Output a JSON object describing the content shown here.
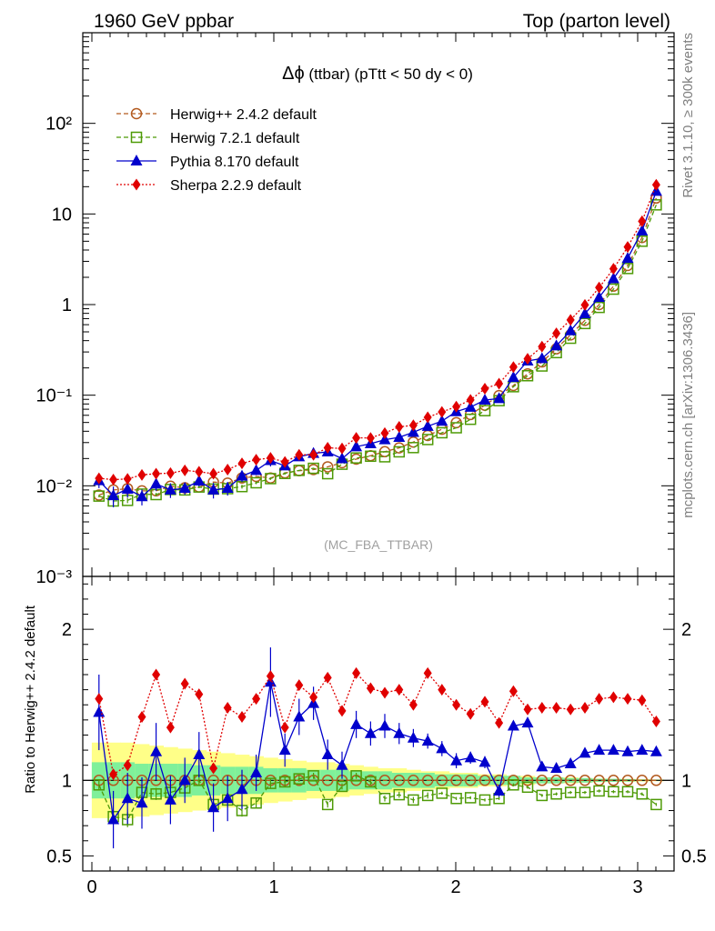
{
  "header": {
    "left": "1960 GeV ppbar",
    "right": "Top (parton level)"
  },
  "side": {
    "rivet": "Rivet 3.1.10, ≥ 300k events",
    "mcplots": "mcplots.cern.ch [arXiv:1306.3436]"
  },
  "plot": {
    "title_prefix": "Δϕ",
    "title_rest": " (ttbar) (pTtt < 50 dy < 0)",
    "watermark": "(MC_FBA_TTBAR)",
    "ratio_ylabel": "Ratio to Herwig++ 2.4.2 default"
  },
  "colors": {
    "herwigpp": "#b35a1f",
    "herwig7": "#4e9a06",
    "pythia": "#0000cc",
    "sherpa": "#e00000",
    "band_inner": "#7ff09a",
    "band_outer": "#ffff88"
  },
  "chart_data": {
    "type": "line",
    "x": [
      0.039,
      0.118,
      0.196,
      0.275,
      0.353,
      0.432,
      0.511,
      0.589,
      0.668,
      0.746,
      0.825,
      0.903,
      0.982,
      1.061,
      1.139,
      1.218,
      1.296,
      1.375,
      1.453,
      1.532,
      1.61,
      1.689,
      1.767,
      1.846,
      1.924,
      2.003,
      2.081,
      2.16,
      2.238,
      2.317,
      2.395,
      2.474,
      2.553,
      2.631,
      2.71,
      2.788,
      2.867,
      2.945,
      3.024,
      3.102
    ],
    "xlim": [
      -0.05,
      3.2
    ],
    "xticks": [
      "0",
      "1",
      "2",
      "3"
    ],
    "main": {
      "scale": "log",
      "ylim": [
        0.001,
        1000
      ],
      "yticks": [
        "10⁻³",
        "10⁻²",
        "10⁻¹",
        "1",
        "10",
        "10²"
      ]
    },
    "ratio": {
      "ylim": [
        0.4,
        2.35
      ],
      "yticks": [
        "0.5",
        "1",
        "2"
      ]
    },
    "series": [
      {
        "name": "Herwig++ 2.4.2 default",
        "key": "herwigpp",
        "marker": "open-circle",
        "line": "dashed",
        "values": [
          0.0079,
          0.009,
          0.0093,
          0.0088,
          0.0088,
          0.0099,
          0.0095,
          0.0097,
          0.011,
          0.0107,
          0.0122,
          0.0127,
          0.0122,
          0.0139,
          0.0147,
          0.0151,
          0.0162,
          0.018,
          0.0197,
          0.0215,
          0.0238,
          0.0262,
          0.0304,
          0.0359,
          0.0421,
          0.0497,
          0.0612,
          0.0775,
          0.0989,
          0.128,
          0.172,
          0.233,
          0.325,
          0.463,
          0.67,
          1.0,
          1.6,
          2.7,
          5.5,
          15.0
        ],
        "ratio": [
          1.0,
          1.0,
          1.0,
          1.0,
          1.0,
          1.0,
          1.0,
          1.0,
          1.0,
          1.0,
          1.0,
          1.0,
          1.0,
          1.0,
          1.0,
          1.0,
          1.0,
          1.0,
          1.0,
          1.0,
          1.0,
          1.0,
          1.0,
          1.0,
          1.0,
          1.0,
          1.0,
          1.0,
          1.0,
          1.0,
          1.0,
          1.0,
          1.0,
          1.0,
          1.0,
          1.0,
          1.0,
          1.0,
          1.0,
          1.0
        ],
        "band_inner": [
          0.12,
          0.12,
          0.12,
          0.11,
          0.11,
          0.11,
          0.11,
          0.1,
          0.1,
          0.09,
          0.09,
          0.09,
          0.08,
          0.08,
          0.08,
          0.07,
          0.07,
          0.07,
          0.06,
          0.06,
          0.06,
          0.05,
          0.05,
          0.05,
          0.04,
          0.04,
          0.04,
          0.03,
          0.03,
          0.03,
          0.02,
          0.02,
          0.02,
          0.015,
          0.015,
          0.01,
          0.01,
          0.008,
          0.005,
          0.004
        ],
        "band_outer": [
          0.25,
          0.25,
          0.25,
          0.24,
          0.23,
          0.22,
          0.21,
          0.2,
          0.19,
          0.18,
          0.17,
          0.16,
          0.15,
          0.14,
          0.13,
          0.12,
          0.12,
          0.11,
          0.1,
          0.09,
          0.08,
          0.08,
          0.07,
          0.06,
          0.06,
          0.05,
          0.05,
          0.04,
          0.04,
          0.03,
          0.03,
          0.02,
          0.02,
          0.02,
          0.015,
          0.012,
          0.01,
          0.01,
          0.008,
          0.006
        ]
      },
      {
        "name": "Herwig 7.2.1 default",
        "key": "herwig7",
        "marker": "open-square",
        "line": "dashed",
        "values": [
          0.0077,
          0.0068,
          0.0069,
          0.0081,
          0.008,
          0.0091,
          0.009,
          0.0097,
          0.0092,
          0.0093,
          0.0098,
          0.0108,
          0.012,
          0.0137,
          0.0148,
          0.0156,
          0.0136,
          0.0173,
          0.0203,
          0.0212,
          0.0209,
          0.0237,
          0.0264,
          0.0324,
          0.0385,
          0.0437,
          0.0542,
          0.0675,
          0.087,
          0.124,
          0.164,
          0.21,
          0.295,
          0.425,
          0.618,
          0.93,
          1.48,
          2.5,
          5.0,
          12.6
        ],
        "ratio": [
          0.97,
          0.76,
          0.74,
          0.92,
          0.91,
          0.92,
          0.95,
          1.0,
          0.84,
          0.87,
          0.8,
          0.85,
          0.98,
          0.99,
          1.01,
          1.03,
          0.84,
          0.96,
          1.03,
          0.99,
          0.88,
          0.905,
          0.87,
          0.9,
          0.915,
          0.88,
          0.885,
          0.87,
          0.88,
          0.97,
          0.955,
          0.9,
          0.91,
          0.92,
          0.92,
          0.93,
          0.925,
          0.925,
          0.91,
          0.84
        ],
        "errors": [
          0.03,
          0.04,
          0.05,
          0.04,
          0.04,
          0.04,
          0.03,
          0.03,
          0.03,
          0.04,
          0.04,
          0.03,
          0.03,
          0.03,
          0.02,
          0.02,
          0.02,
          0.02,
          0.02,
          0.02,
          0.02,
          0.02,
          0.02,
          0.02,
          0.01,
          0.01,
          0.01,
          0.01,
          0.01,
          0.01,
          0.01,
          0.01,
          0.01,
          0.01,
          0.01,
          0.01,
          0.01,
          0.01,
          0.01,
          0.01
        ]
      },
      {
        "name": "Pythia 8.170 default",
        "key": "pythia",
        "marker": "filled-triangle",
        "line": "solid",
        "values": [
          0.0114,
          0.0078,
          0.0092,
          0.0076,
          0.0105,
          0.009,
          0.0094,
          0.0113,
          0.009,
          0.0094,
          0.0128,
          0.0148,
          0.019,
          0.0166,
          0.0209,
          0.0228,
          0.0237,
          0.0199,
          0.027,
          0.0292,
          0.0323,
          0.0343,
          0.0389,
          0.0454,
          0.0517,
          0.0659,
          0.0738,
          0.0885,
          0.0917,
          0.157,
          0.239,
          0.254,
          0.351,
          0.514,
          0.792,
          1.2,
          1.93,
          3.24,
          6.5,
          17.8
        ],
        "ratio": [
          1.45,
          0.74,
          0.88,
          0.85,
          1.19,
          0.87,
          1.0,
          1.17,
          0.82,
          0.88,
          0.94,
          1.05,
          1.65,
          1.2,
          1.42,
          1.51,
          1.17,
          1.1,
          1.37,
          1.31,
          1.36,
          1.31,
          1.28,
          1.26,
          1.21,
          1.13,
          1.15,
          1.12,
          0.93,
          1.36,
          1.38,
          1.09,
          1.08,
          1.11,
          1.18,
          1.2,
          1.2,
          1.19,
          1.2,
          1.19
        ],
        "errors": [
          0.25,
          0.19,
          0.17,
          0.17,
          0.19,
          0.16,
          0.15,
          0.15,
          0.16,
          0.15,
          0.13,
          0.12,
          0.23,
          0.11,
          0.12,
          0.11,
          0.1,
          0.09,
          0.09,
          0.08,
          0.08,
          0.07,
          0.06,
          0.05,
          0.05,
          0.05,
          0.04,
          0.04,
          0.04,
          0.03,
          0.03,
          0.02,
          0.02,
          0.02,
          0.02,
          0.01,
          0.01,
          0.01,
          0.01,
          0.01
        ]
      },
      {
        "name": "Sherpa 2.2.9 default",
        "key": "sherpa",
        "marker": "filled-diamond",
        "line": "dotted",
        "values": [
          0.0121,
          0.0117,
          0.0119,
          0.0132,
          0.0136,
          0.0138,
          0.0148,
          0.0143,
          0.0136,
          0.0151,
          0.0177,
          0.0194,
          0.0203,
          0.0183,
          0.022,
          0.022,
          0.0263,
          0.0258,
          0.0338,
          0.0337,
          0.0382,
          0.0447,
          0.0465,
          0.057,
          0.0653,
          0.0747,
          0.0887,
          0.118,
          0.134,
          0.204,
          0.252,
          0.344,
          0.481,
          0.678,
          0.992,
          1.54,
          2.48,
          4.32,
          8.3,
          21.0
        ],
        "ratio": [
          1.54,
          1.04,
          1.1,
          1.42,
          1.7,
          1.35,
          1.64,
          1.57,
          1.08,
          1.48,
          1.42,
          1.54,
          1.69,
          1.35,
          1.63,
          1.55,
          1.68,
          1.46,
          1.71,
          1.61,
          1.58,
          1.6,
          1.5,
          1.71,
          1.6,
          1.5,
          1.44,
          1.52,
          1.38,
          1.59,
          1.47,
          1.48,
          1.48,
          1.47,
          1.48,
          1.54,
          1.55,
          1.54,
          1.53,
          1.39
        ],
        "errors": [
          0.02,
          0.02,
          0.02,
          0.02,
          0.02,
          0.02,
          0.02,
          0.02,
          0.02,
          0.02,
          0.02,
          0.02,
          0.02,
          0.02,
          0.02,
          0.02,
          0.02,
          0.02,
          0.02,
          0.01,
          0.01,
          0.01,
          0.01,
          0.01,
          0.01,
          0.01,
          0.01,
          0.01,
          0.01,
          0.01,
          0.01,
          0.01,
          0.01,
          0.01,
          0.01,
          0.01,
          0.01,
          0.01,
          0.01,
          0.01
        ]
      }
    ]
  }
}
